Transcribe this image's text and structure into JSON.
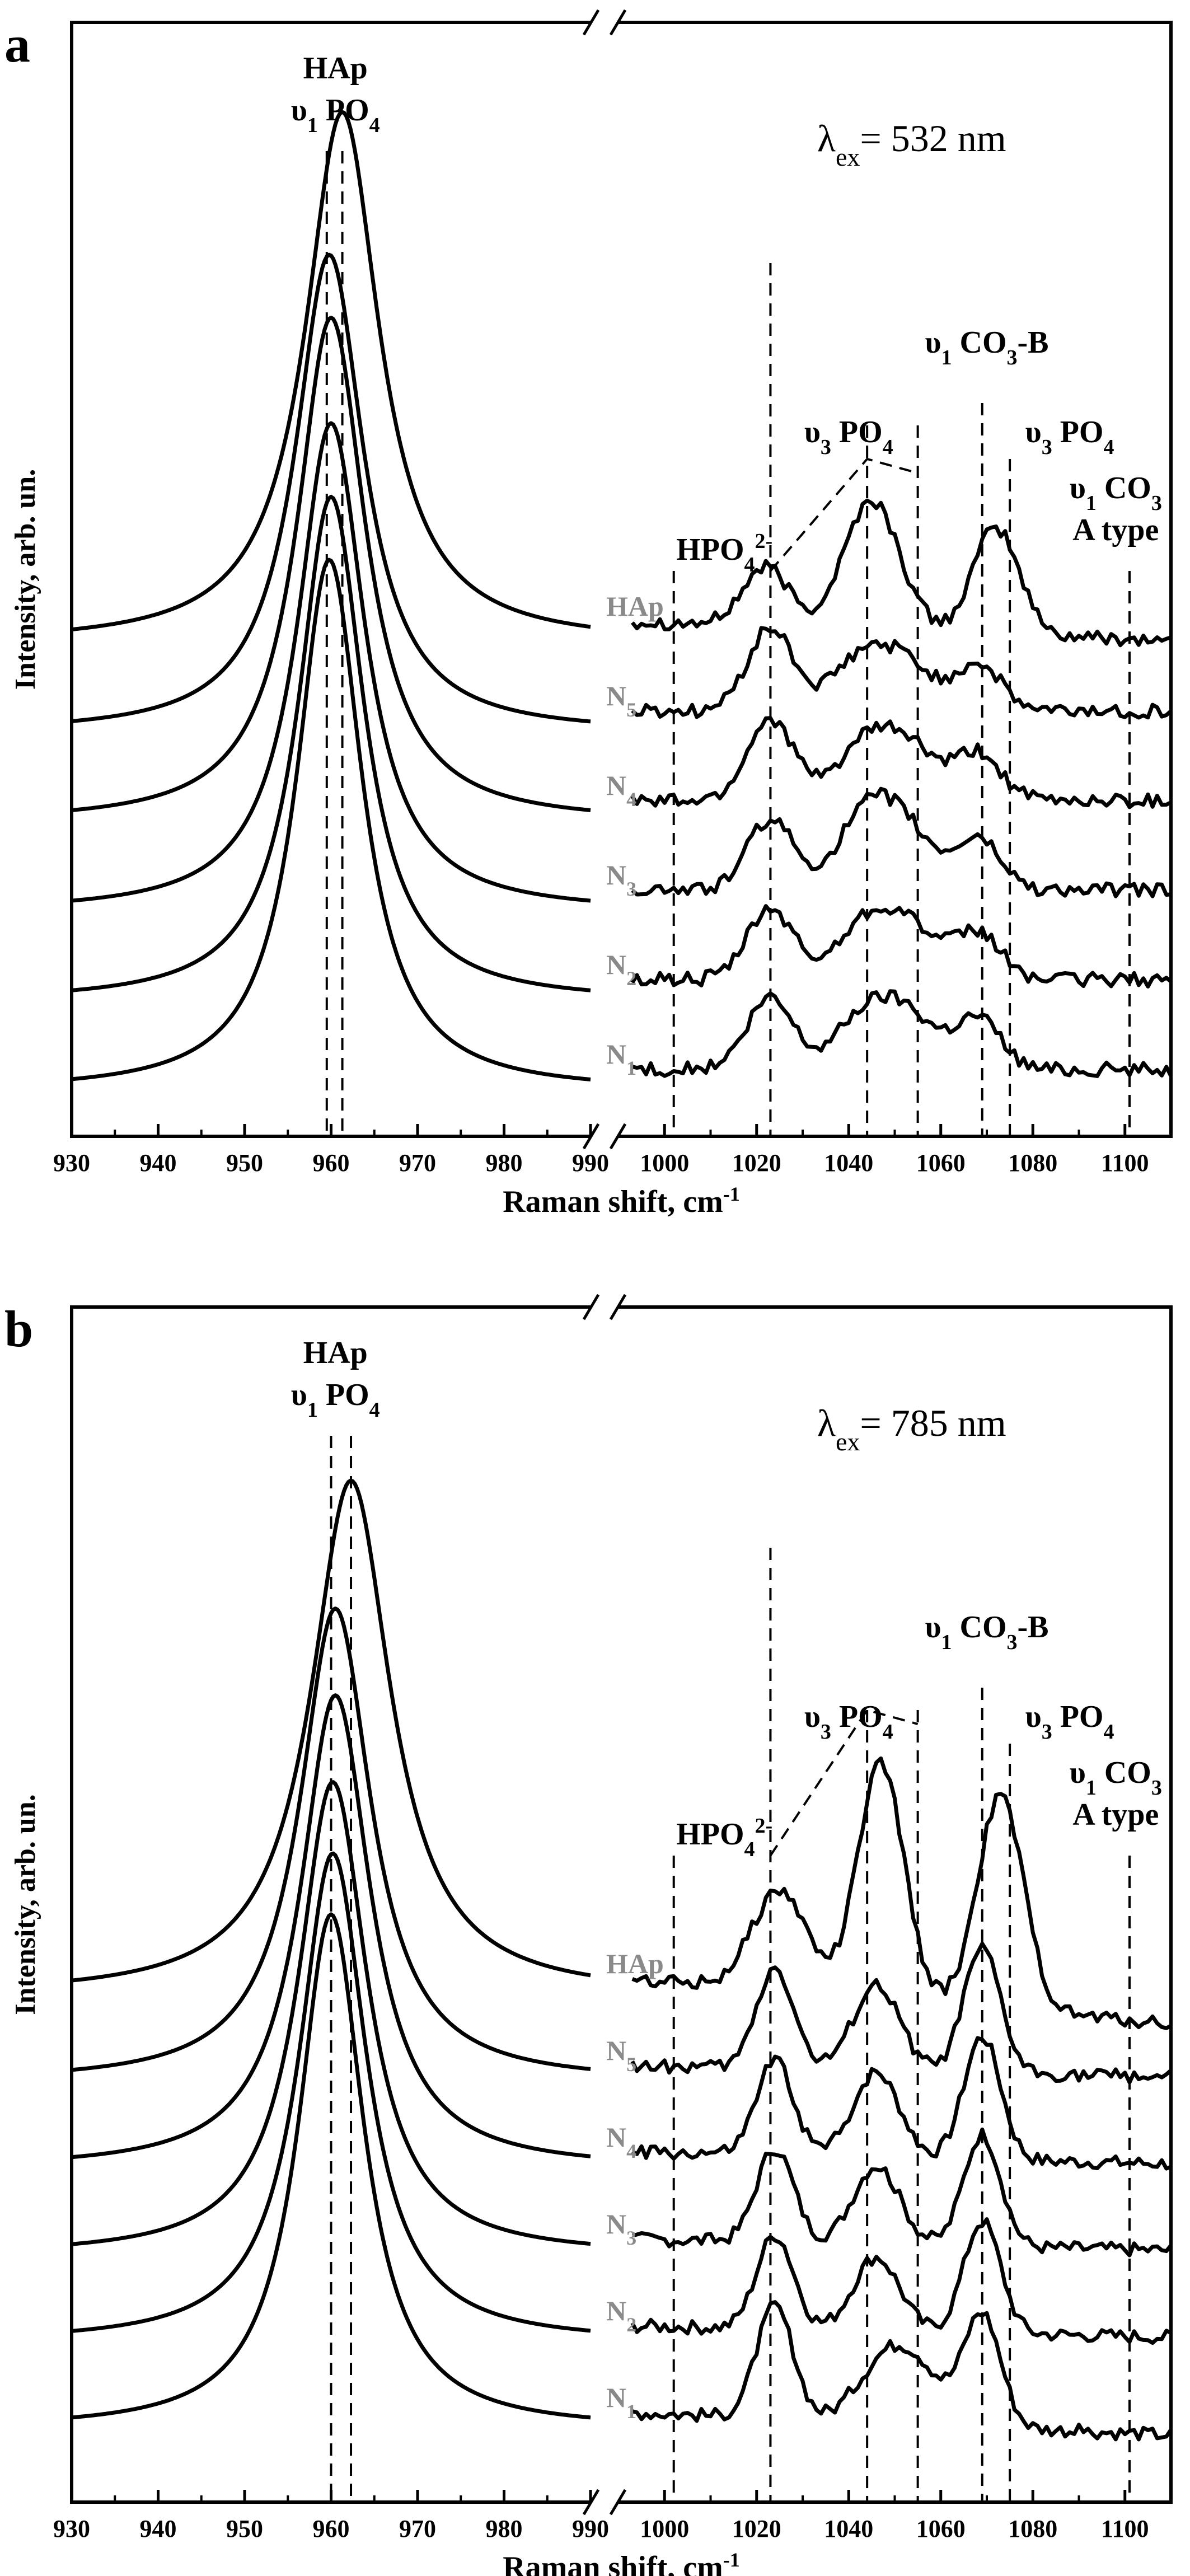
{
  "chart_data": [
    {
      "panel": "a",
      "type": "line",
      "title": "",
      "excitation_prefix": "λ",
      "excitation_sub": "ex",
      "excitation_value": "= 532 nm",
      "xlabel": "Raman shift, cm",
      "xlabel_sup": "-1",
      "ylabel": "Intensity, arb. un.",
      "x_segments": [
        [
          930,
          990
        ],
        [
          990,
          1110
        ]
      ],
      "x_ticks_left": [
        "930",
        "940",
        "950",
        "960",
        "970",
        "980",
        "990"
      ],
      "x_ticks_right": [
        "1000",
        "1020",
        "1040",
        "1060",
        "1080",
        "1100"
      ],
      "vertical_lines_left": [
        959.5,
        961.3
      ],
      "vertical_lines_right": [
        1002,
        1023,
        1044,
        1055,
        1069,
        1075,
        1101
      ],
      "annotations": [
        {
          "text": "HAp",
          "sub": ""
        },
        {
          "text": "υ",
          "sub": "1",
          "tail": " PO",
          "sub2": "4"
        },
        {
          "text": "υ",
          "sub": "1",
          "tail": " CO",
          "sub2": "3",
          "tail2": "-B"
        },
        {
          "text": "υ",
          "sub": "3",
          "tail": " PO",
          "sub2": "4"
        },
        {
          "text": "υ",
          "sub": "3",
          "tail": " PO",
          "sub2": "4"
        },
        {
          "text": "HPO",
          "sub2": "4",
          "sup": "2-"
        },
        {
          "text": "υ",
          "sub": "1",
          "tail": " CO",
          "sub2": "3"
        },
        {
          "text": "A type"
        }
      ],
      "series": [
        {
          "name": "HAp",
          "label_main": "HAp",
          "label_sub": "",
          "peak_center": 961.3,
          "peak_width": 5.2,
          "peak_height": 1.0,
          "offset": 5,
          "right_peaks": [
            [
              1022,
              0.25,
              5
            ],
            [
              1045,
              0.55,
              6
            ],
            [
              1072,
              0.45,
              5
            ]
          ],
          "right_trend": -0.08
        },
        {
          "name": "N5",
          "label_main": "N",
          "label_sub": "5",
          "peak_center": 959.8,
          "peak_width": 4.8,
          "peak_height": 0.9,
          "offset": 4,
          "right_peaks": [
            [
              1023,
              0.35,
              5
            ],
            [
              1042,
              0.2,
              6
            ],
            [
              1052,
              0.2,
              6
            ],
            [
              1068,
              0.2,
              5
            ]
          ],
          "right_trend": 0
        },
        {
          "name": "N4",
          "label_main": "N",
          "label_sub": "4",
          "peak_center": 960.0,
          "peak_width": 4.8,
          "peak_height": 0.95,
          "offset": 3,
          "right_peaks": [
            [
              1023,
              0.35,
              5
            ],
            [
              1043,
              0.22,
              6
            ],
            [
              1053,
              0.22,
              6
            ],
            [
              1068,
              0.2,
              5
            ]
          ],
          "right_trend": 0
        },
        {
          "name": "N3",
          "label_main": "N",
          "label_sub": "3",
          "peak_center": 960.0,
          "peak_width": 4.7,
          "peak_height": 0.92,
          "offset": 2,
          "right_peaks": [
            [
              1023,
              0.3,
              5
            ],
            [
              1043,
              0.28,
              6
            ],
            [
              1052,
              0.25,
              6
            ],
            [
              1068,
              0.22,
              5
            ]
          ],
          "right_trend": 0
        },
        {
          "name": "N2",
          "label_main": "N",
          "label_sub": "2",
          "peak_center": 960.0,
          "peak_width": 4.6,
          "peak_height": 0.95,
          "offset": 1,
          "right_peaks": [
            [
              1023,
              0.3,
              5
            ],
            [
              1043,
              0.22,
              6
            ],
            [
              1053,
              0.22,
              6
            ],
            [
              1068,
              0.2,
              5
            ]
          ],
          "right_trend": 0
        },
        {
          "name": "N1",
          "label_main": "N",
          "label_sub": "1",
          "peak_center": 959.8,
          "peak_width": 4.6,
          "peak_height": 1.0,
          "offset": 0,
          "right_peaks": [
            [
              1023,
              0.3,
              5
            ],
            [
              1043,
              0.22,
              6
            ],
            [
              1053,
              0.22,
              6
            ],
            [
              1068,
              0.22,
              5
            ]
          ],
          "right_trend": 0
        }
      ]
    },
    {
      "panel": "b",
      "type": "line",
      "title": "",
      "excitation_prefix": "λ",
      "excitation_sub": "ex",
      "excitation_value": "= 785 nm",
      "xlabel": "Raman shift, cm",
      "xlabel_sup": "-1",
      "ylabel": "Intensity, arb. un.",
      "x_segments": [
        [
          930,
          990
        ],
        [
          990,
          1110
        ]
      ],
      "x_ticks_left": [
        "930",
        "940",
        "950",
        "960",
        "970",
        "980",
        "990"
      ],
      "x_ticks_right": [
        "1000",
        "1020",
        "1040",
        "1060",
        "1080",
        "1100"
      ],
      "vertical_lines_left": [
        960.0,
        962.3
      ],
      "vertical_lines_right": [
        1002,
        1023,
        1044,
        1055,
        1069,
        1075,
        1101
      ],
      "annotations": [
        {
          "text": "HAp",
          "sub": ""
        },
        {
          "text": "υ",
          "sub": "1",
          "tail": " PO",
          "sub2": "4"
        },
        {
          "text": "υ",
          "sub": "1",
          "tail": " CO",
          "sub2": "3",
          "tail2": "-B"
        },
        {
          "text": "υ",
          "sub": "3",
          "tail": " PO",
          "sub2": "4"
        },
        {
          "text": "υ",
          "sub": "3",
          "tail": " PO",
          "sub2": "4"
        },
        {
          "text": "HPO",
          "sub2": "4",
          "sup": "2-"
        },
        {
          "text": "υ",
          "sub": "1",
          "tail": " CO",
          "sub2": "3"
        },
        {
          "text": "A type"
        }
      ],
      "series": [
        {
          "name": "HAp",
          "label_main": "HAp",
          "label_sub": "",
          "peak_center": 962.3,
          "peak_width": 5.6,
          "peak_height": 1.0,
          "offset": 5,
          "right_peaks": [
            [
              1025,
              0.45,
              6
            ],
            [
              1047,
              1.05,
              5
            ],
            [
              1073,
              0.95,
              5
            ]
          ],
          "right_trend": -0.2
        },
        {
          "name": "N5",
          "label_main": "N",
          "label_sub": "5",
          "peak_center": 960.5,
          "peak_width": 5.0,
          "peak_height": 0.92,
          "offset": 4,
          "right_peaks": [
            [
              1024,
              0.45,
              4
            ],
            [
              1046,
              0.38,
              5
            ],
            [
              1069,
              0.55,
              4
            ]
          ],
          "right_trend": -0.05
        },
        {
          "name": "N4",
          "label_main": "N",
          "label_sub": "4",
          "peak_center": 960.5,
          "peak_width": 4.9,
          "peak_height": 0.92,
          "offset": 3,
          "right_peaks": [
            [
              1024,
              0.42,
              4
            ],
            [
              1046,
              0.38,
              5
            ],
            [
              1069,
              0.55,
              4
            ]
          ],
          "right_trend": -0.05
        },
        {
          "name": "N3",
          "label_main": "N",
          "label_sub": "3",
          "peak_center": 960.2,
          "peak_width": 4.8,
          "peak_height": 0.92,
          "offset": 2,
          "right_peaks": [
            [
              1024,
              0.42,
              4
            ],
            [
              1046,
              0.35,
              5
            ],
            [
              1069,
              0.5,
              4
            ]
          ],
          "right_trend": -0.05
        },
        {
          "name": "N2",
          "label_main": "N",
          "label_sub": "2",
          "peak_center": 960.2,
          "peak_width": 4.7,
          "peak_height": 0.95,
          "offset": 1,
          "right_peaks": [
            [
              1024,
              0.42,
              4
            ],
            [
              1046,
              0.33,
              5
            ],
            [
              1069,
              0.5,
              4
            ]
          ],
          "right_trend": -0.05
        },
        {
          "name": "N1",
          "label_main": "N",
          "label_sub": "1",
          "peak_center": 960.0,
          "peak_width": 4.6,
          "peak_height": 1.0,
          "offset": 0,
          "right_peaks": [
            [
              1024,
              0.5,
              4
            ],
            [
              1047,
              0.22,
              6
            ],
            [
              1055,
              0.22,
              6
            ],
            [
              1069,
              0.5,
              4
            ]
          ],
          "right_trend": -0.1
        }
      ]
    }
  ]
}
